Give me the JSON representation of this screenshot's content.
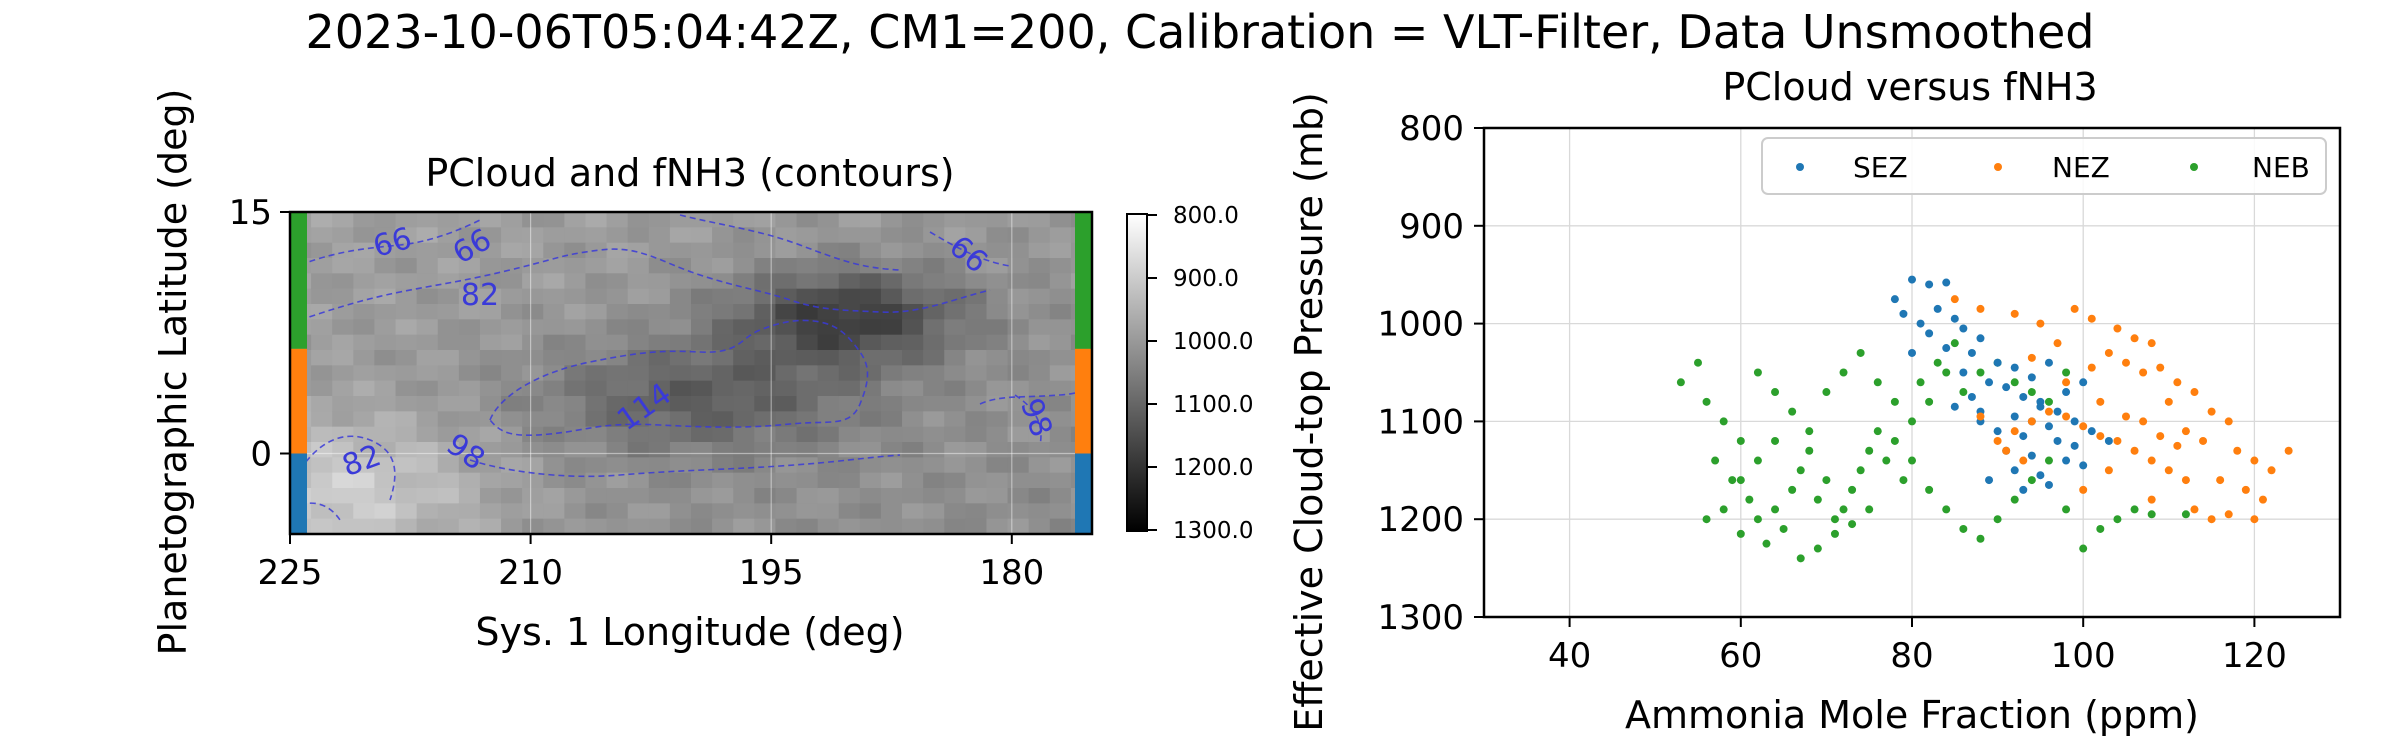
{
  "figure": {
    "suptitle": "2023-10-06T05:04:42Z, CM1=200, Calibration = VLT-Filter, Data Unsmoothed"
  },
  "colors": {
    "sez": "#1f77b4",
    "nez": "#ff7f0e",
    "neb": "#2ca02c",
    "contour": "#3a3ad8",
    "grid": "#d9d9d9"
  },
  "chart_data": [
    {
      "type": "heatmap",
      "title": "PCloud and fNH3 (contours)",
      "xlabel": "Sys. 1 Longitude (deg)",
      "ylabel": "Planetographic Latitude (deg)",
      "xlim": [
        225,
        175
      ],
      "ylim": [
        -5,
        15
      ],
      "xticks": [
        "225",
        "210",
        "195",
        "180"
      ],
      "yticks": [
        "15",
        "0"
      ],
      "grid": true,
      "colormap": "gray_r",
      "colorbar_ticks": [
        "800.0",
        "900.0",
        "1000.0",
        "1100.0",
        "1200.0",
        "1300.0"
      ],
      "contour_labels": [
        "66",
        "66",
        "66",
        "82",
        "82",
        "114",
        "98",
        "98"
      ],
      "band_colors": [
        "#2ca02c",
        "#ff7f0e",
        "#1f77b4"
      ]
    },
    {
      "type": "scatter",
      "title": "PCloud versus fNH3",
      "xlabel": "Ammonia Mole Fraction (ppm)",
      "ylabel": "Effective Cloud-top Pressure (mb)",
      "xlim": [
        30,
        130
      ],
      "ylim": [
        1300,
        800
      ],
      "xticks": [
        "40",
        "60",
        "80",
        "100",
        "120"
      ],
      "yticks": [
        "800",
        "900",
        "1000",
        "1100",
        "1200",
        "1300"
      ],
      "grid": true,
      "legend_position": "top-right",
      "series": [
        {
          "name": "SEZ",
          "color": "#1f77b4",
          "points": [
            [
              80,
              955
            ],
            [
              82,
              960
            ],
            [
              84,
              958
            ],
            [
              78,
              975
            ],
            [
              79,
              990
            ],
            [
              81,
              1000
            ],
            [
              83,
              985
            ],
            [
              85,
              995
            ],
            [
              86,
              1005
            ],
            [
              88,
              1015
            ],
            [
              84,
              1025
            ],
            [
              87,
              1030
            ],
            [
              90,
              1040
            ],
            [
              82,
              1010
            ],
            [
              80,
              1030
            ],
            [
              86,
              1050
            ],
            [
              89,
              1060
            ],
            [
              91,
              1065
            ],
            [
              93,
              1075
            ],
            [
              95,
              1080
            ],
            [
              88,
              1090
            ],
            [
              92,
              1095
            ],
            [
              94,
              1100
            ],
            [
              96,
              1105
            ],
            [
              90,
              1110
            ],
            [
              93,
              1115
            ],
            [
              97,
              1120
            ],
            [
              99,
              1125
            ],
            [
              91,
              1130
            ],
            [
              94,
              1135
            ],
            [
              98,
              1140
            ],
            [
              100,
              1145
            ],
            [
              92,
              1150
            ],
            [
              95,
              1155
            ],
            [
              89,
              1160
            ],
            [
              96,
              1165
            ],
            [
              93,
              1170
            ],
            [
              97,
              1090
            ],
            [
              99,
              1100
            ],
            [
              101,
              1110
            ],
            [
              103,
              1120
            ],
            [
              95,
              1085
            ],
            [
              98,
              1070
            ],
            [
              100,
              1060
            ],
            [
              94,
              1055
            ],
            [
              92,
              1045
            ],
            [
              96,
              1040
            ],
            [
              87,
              1075
            ],
            [
              85,
              1085
            ],
            [
              88,
              1100
            ]
          ]
        },
        {
          "name": "NEZ",
          "color": "#ff7f0e",
          "points": [
            [
              85,
              975
            ],
            [
              88,
              985
            ],
            [
              92,
              990
            ],
            [
              95,
              1000
            ],
            [
              99,
              985
            ],
            [
              101,
              995
            ],
            [
              104,
              1005
            ],
            [
              106,
              1015
            ],
            [
              108,
              1020
            ],
            [
              103,
              1030
            ],
            [
              105,
              1040
            ],
            [
              107,
              1050
            ],
            [
              109,
              1045
            ],
            [
              111,
              1060
            ],
            [
              113,
              1070
            ],
            [
              110,
              1080
            ],
            [
              115,
              1090
            ],
            [
              117,
              1100
            ],
            [
              112,
              1110
            ],
            [
              114,
              1120
            ],
            [
              118,
              1130
            ],
            [
              120,
              1140
            ],
            [
              122,
              1150
            ],
            [
              116,
              1160
            ],
            [
              119,
              1170
            ],
            [
              121,
              1180
            ],
            [
              113,
              1190
            ],
            [
              115,
              1200
            ],
            [
              110,
              1150
            ],
            [
              108,
              1140
            ],
            [
              106,
              1130
            ],
            [
              104,
              1120
            ],
            [
              102,
              1115
            ],
            [
              100,
              1105
            ],
            [
              98,
              1095
            ],
            [
              96,
              1090
            ],
            [
              94,
              1100
            ],
            [
              92,
              1110
            ],
            [
              90,
              1120
            ],
            [
              88,
              1095
            ],
            [
              91,
              1130
            ],
            [
              93,
              1140
            ],
            [
              107,
              1100
            ],
            [
              109,
              1115
            ],
            [
              111,
              1125
            ],
            [
              117,
              1195
            ],
            [
              120,
              1200
            ],
            [
              124,
              1130
            ],
            [
              112,
              1160
            ],
            [
              102,
              1080
            ],
            [
              98,
              1060
            ],
            [
              101,
              1045
            ],
            [
              97,
              1020
            ],
            [
              94,
              1035
            ],
            [
              105,
              1095
            ],
            [
              103,
              1150
            ],
            [
              100,
              1170
            ],
            [
              108,
              1180
            ]
          ]
        },
        {
          "name": "NEB",
          "color": "#2ca02c",
          "points": [
            [
              53,
              1060
            ],
            [
              55,
              1040
            ],
            [
              56,
              1080
            ],
            [
              58,
              1100
            ],
            [
              60,
              1120
            ],
            [
              57,
              1140
            ],
            [
              59,
              1160
            ],
            [
              61,
              1180
            ],
            [
              62,
              1200
            ],
            [
              60,
              1215
            ],
            [
              63,
              1225
            ],
            [
              65,
              1210
            ],
            [
              64,
              1190
            ],
            [
              66,
              1170
            ],
            [
              67,
              1150
            ],
            [
              68,
              1130
            ],
            [
              70,
              1160
            ],
            [
              69,
              1180
            ],
            [
              71,
              1200
            ],
            [
              72,
              1190
            ],
            [
              73,
              1170
            ],
            [
              74,
              1150
            ],
            [
              75,
              1130
            ],
            [
              76,
              1110
            ],
            [
              77,
              1140
            ],
            [
              79,
              1160
            ],
            [
              78,
              1120
            ],
            [
              80,
              1100
            ],
            [
              82,
              1080
            ],
            [
              81,
              1060
            ],
            [
              83,
              1040
            ],
            [
              85,
              1020
            ],
            [
              84,
              1050
            ],
            [
              86,
              1070
            ],
            [
              62,
              1050
            ],
            [
              64,
              1070
            ],
            [
              66,
              1090
            ],
            [
              68,
              1110
            ],
            [
              70,
              1070
            ],
            [
              72,
              1050
            ],
            [
              74,
              1030
            ],
            [
              76,
              1060
            ],
            [
              78,
              1080
            ],
            [
              80,
              1140
            ],
            [
              82,
              1170
            ],
            [
              84,
              1190
            ],
            [
              86,
              1210
            ],
            [
              88,
              1220
            ],
            [
              90,
              1200
            ],
            [
              92,
              1180
            ],
            [
              94,
              1160
            ],
            [
              96,
              1140
            ],
            [
              98,
              1190
            ],
            [
              100,
              1230
            ],
            [
              102,
              1210
            ],
            [
              104,
              1200
            ],
            [
              106,
              1190
            ],
            [
              108,
              1195
            ],
            [
              112,
              1195
            ],
            [
              67,
              1240
            ],
            [
              69,
              1230
            ],
            [
              71,
              1215
            ],
            [
              73,
              1205
            ],
            [
              75,
              1190
            ],
            [
              58,
              1190
            ],
            [
              60,
              1160
            ],
            [
              62,
              1140
            ],
            [
              64,
              1120
            ],
            [
              56,
              1200
            ],
            [
              88,
              1050
            ],
            [
              90,
              1040
            ],
            [
              92,
              1060
            ],
            [
              94,
              1070
            ],
            [
              96,
              1080
            ],
            [
              98,
              1050
            ]
          ]
        }
      ]
    }
  ]
}
